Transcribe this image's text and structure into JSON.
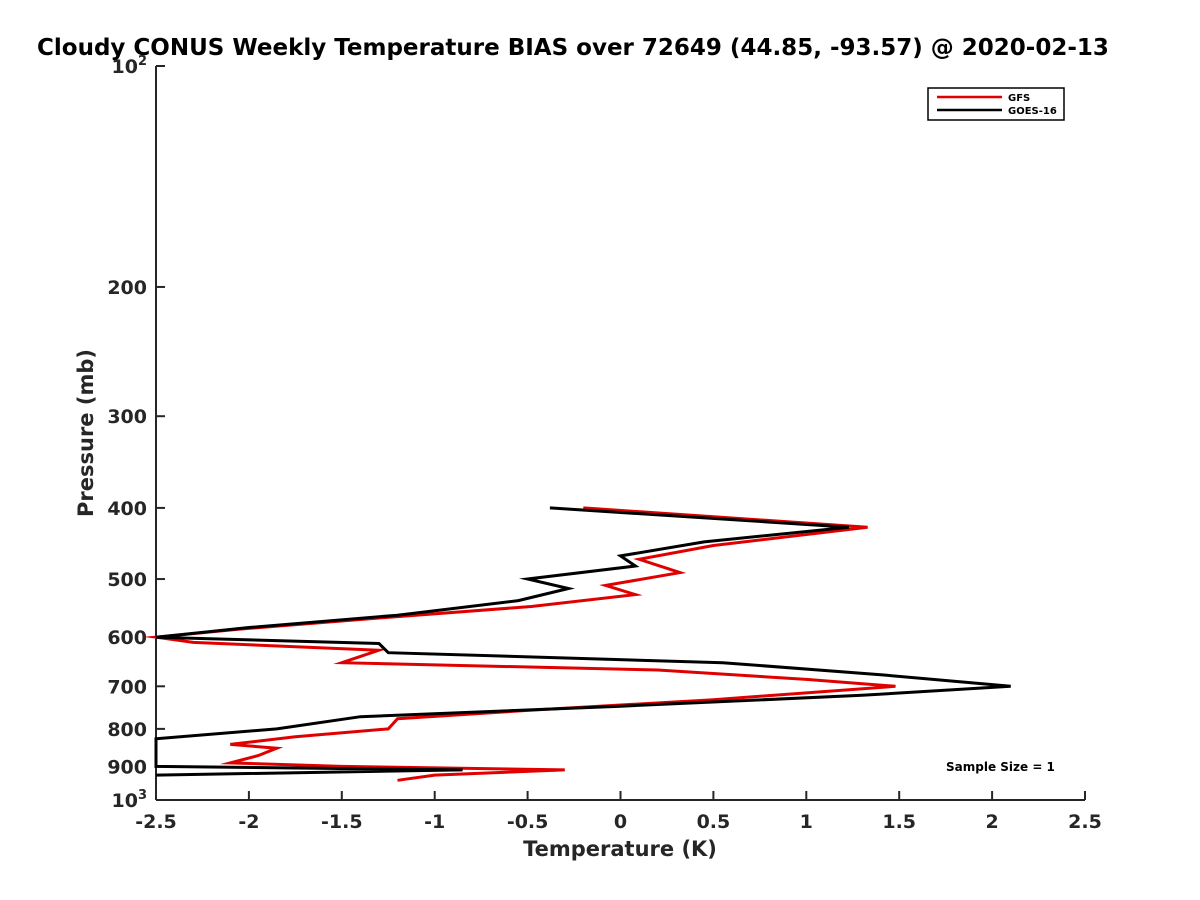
{
  "chart_data": {
    "type": "line",
    "title": "Cloudy CONUS Weekly Temperature BIAS over 72649 (44.85, -93.57) @ 2020-02-13",
    "xlabel": "Temperature (K)",
    "ylabel": "Pressure (mb)",
    "xlim": [
      -2.5,
      2.5
    ],
    "ylim": [
      100,
      1000
    ],
    "y_scale": "log",
    "y_reversed": true,
    "x_ticks": [
      "-2.5",
      "-2",
      "-1.5",
      "-1",
      "-0.5",
      "0",
      "0.5",
      "1",
      "1.5",
      "2",
      "2.5"
    ],
    "x_tick_values": [
      -2.5,
      -2,
      -1.5,
      -1,
      -0.5,
      0,
      0.5,
      1,
      1.5,
      2,
      2.5
    ],
    "y_ticks": [
      {
        "value": 100,
        "base": "10",
        "exp": "2"
      },
      {
        "value": 200,
        "label": "200"
      },
      {
        "value": 300,
        "label": "300"
      },
      {
        "value": 400,
        "label": "400"
      },
      {
        "value": 500,
        "label": "500"
      },
      {
        "value": 600,
        "label": "600"
      },
      {
        "value": 700,
        "label": "700"
      },
      {
        "value": 800,
        "label": "800"
      },
      {
        "value": 900,
        "label": "900"
      },
      {
        "value": 1000,
        "base": "10",
        "exp": "3"
      }
    ],
    "grid": false,
    "legend_position": "top-right",
    "series": [
      {
        "name": "GFS",
        "color": "#e00000",
        "points": [
          [
            -0.2,
            400
          ],
          [
            1.33,
            425
          ],
          [
            0.5,
            450
          ],
          [
            0.1,
            470
          ],
          [
            0.32,
            490
          ],
          [
            -0.08,
            510
          ],
          [
            0.08,
            525
          ],
          [
            -0.48,
            545
          ],
          [
            -1.3,
            565
          ],
          [
            -2.05,
            585
          ],
          [
            -2.5,
            600
          ],
          [
            -2.3,
            610
          ],
          [
            -1.3,
            625
          ],
          [
            -1.5,
            650
          ],
          [
            0.2,
            665
          ],
          [
            1.0,
            685
          ],
          [
            1.48,
            700
          ],
          [
            0.5,
            730
          ],
          [
            -0.5,
            755
          ],
          [
            -1.2,
            775
          ],
          [
            -1.25,
            800
          ],
          [
            -1.75,
            820
          ],
          [
            -2.1,
            840
          ],
          [
            -1.85,
            850
          ],
          [
            -1.95,
            870
          ],
          [
            -2.1,
            890
          ],
          [
            -1.5,
            900
          ],
          [
            -0.3,
            910
          ],
          [
            -1.0,
            925
          ],
          [
            -1.2,
            940
          ]
        ]
      },
      {
        "name": "GOES-16",
        "color": "#000000",
        "points": [
          [
            -0.38,
            400
          ],
          [
            1.23,
            425
          ],
          [
            0.45,
            445
          ],
          [
            0.0,
            465
          ],
          [
            0.08,
            480
          ],
          [
            -0.5,
            500
          ],
          [
            -0.28,
            515
          ],
          [
            -0.55,
            535
          ],
          [
            -1.2,
            560
          ],
          [
            -2.0,
            582
          ],
          [
            -2.5,
            600
          ],
          [
            -1.3,
            612
          ],
          [
            -1.25,
            630
          ],
          [
            0.55,
            650
          ],
          [
            1.4,
            675
          ],
          [
            2.1,
            700
          ],
          [
            1.3,
            720
          ],
          [
            0.0,
            745
          ],
          [
            -1.4,
            770
          ],
          [
            -1.85,
            800
          ],
          [
            -2.5,
            825
          ],
          [
            -2.5,
            900
          ],
          [
            -0.85,
            910
          ],
          [
            -2.5,
            925
          ]
        ]
      }
    ],
    "annotation": "Sample Size = 1"
  }
}
